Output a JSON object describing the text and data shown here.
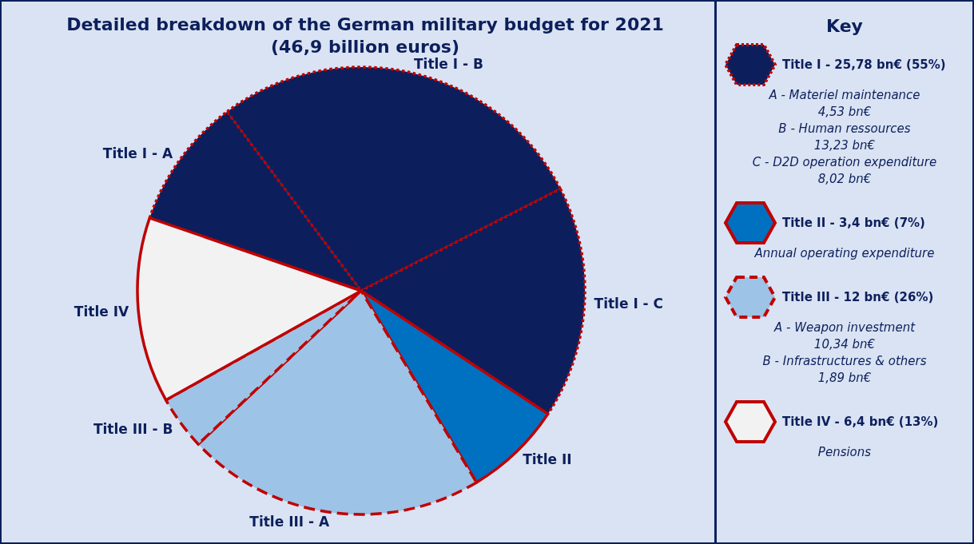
{
  "chart_data": {
    "type": "pie",
    "title": "Detailed breakdown of the German military budget for 2021",
    "subtitle": "(46,9 billion euros)",
    "categories": [
      "Title I - A",
      "Title I - B",
      "Title I - C",
      "Title II",
      "Title III - A",
      "Title III - B",
      "Title IV"
    ],
    "values": [
      9.5,
      27.7,
      16.8,
      7.1,
      21.6,
      3.9,
      13.4
    ],
    "colors": [
      "#0c1f5c",
      "#0c1f5c",
      "#0c1f5c",
      "#0070c0",
      "#9dc3e6",
      "#9dc3e6",
      "#f2f2f2"
    ],
    "legend_title": "Key",
    "annotations": [
      "Title I - 25,78 bn€ (55%)",
      "A - Materiel maintenance",
      "4,53 bn€",
      "B - Human ressources",
      "13,23 bn€",
      "C - D2D operation expenditure",
      "8,02 bn€",
      "Title II - 3,4 bn€ (7%)",
      "Annual operating expenditure",
      "Title III - 12 bn€ (26%)",
      "A - Weapon investment",
      "10,34 bn€",
      "B - Infrastructures & others",
      "1,89 bn€",
      "Title IV - 6,4 bn€ (13%)",
      "Pensions"
    ]
  }
}
